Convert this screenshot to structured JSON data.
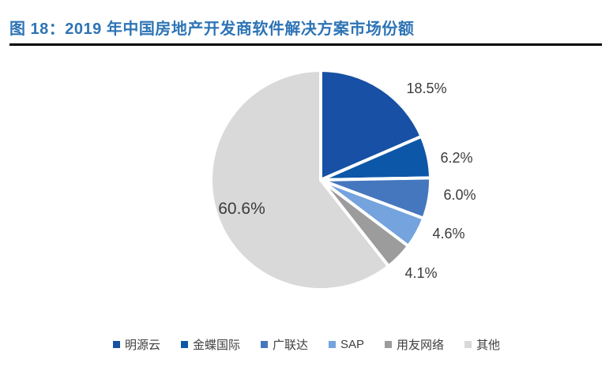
{
  "figure": {
    "title": "图 18：2019 年中国房地产开发商软件解决方案市场份额"
  },
  "chart_data": {
    "type": "pie",
    "title": "2019 年中国房地产开发商软件解决方案市场份额",
    "unit": "%",
    "start_angle_deg": 0,
    "direction": "clockwise",
    "legend_position": "bottom",
    "label_color": "#3B3B3B",
    "items": [
      {
        "name": "明源云",
        "value": 18.5,
        "label": "18.5%",
        "color": "#1750A4"
      },
      {
        "name": "金蝶国际",
        "value": 6.2,
        "label": "6.2%",
        "color": "#0D57A8"
      },
      {
        "name": "广联达",
        "value": 6.0,
        "label": "6.0%",
        "color": "#4577BE"
      },
      {
        "name": "SAP",
        "value": 4.6,
        "label": "4.6%",
        "color": "#74A3DD"
      },
      {
        "name": "用友网络",
        "value": 4.1,
        "label": "4.1%",
        "color": "#9C9C9C"
      },
      {
        "name": "其他",
        "value": 60.6,
        "label": "60.6%",
        "color": "#D9D9D9"
      }
    ]
  }
}
